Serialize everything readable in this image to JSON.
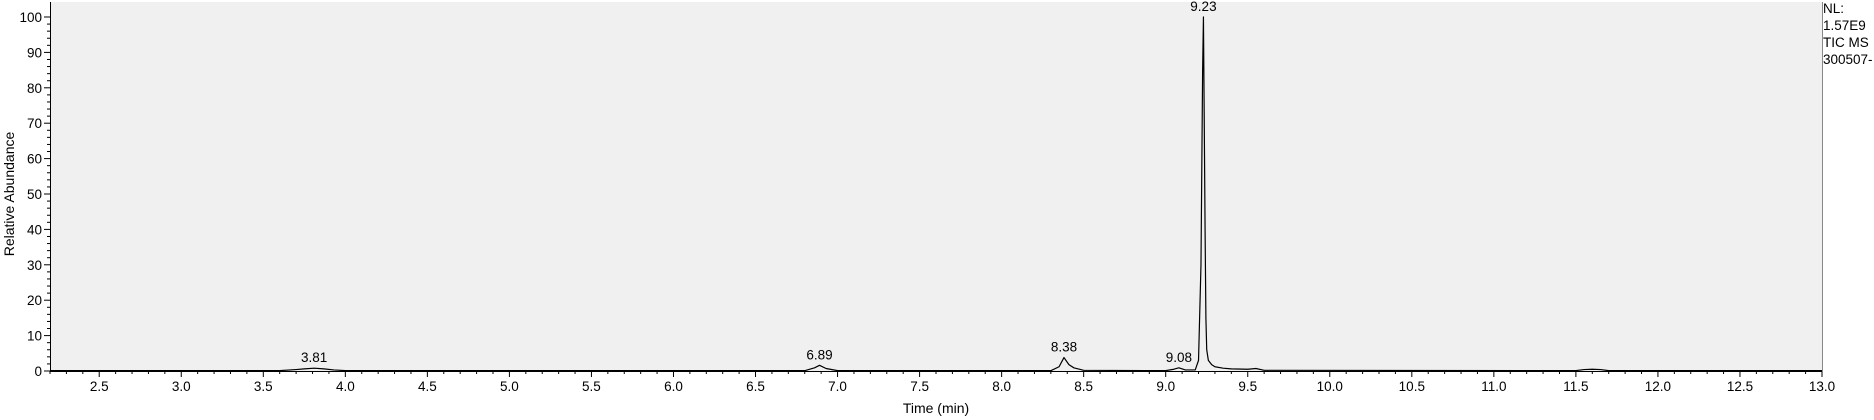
{
  "info": {
    "nl_label": "NL:",
    "nl_value": "1.57E9",
    "trace": "TIC  MS",
    "file": "300507-"
  },
  "chart_data": {
    "type": "line",
    "xlabel": "Time (min)",
    "ylabel": "Relative Abundance",
    "xlim": [
      2.2,
      13.0
    ],
    "ylim": [
      0,
      100
    ],
    "x_ticks": [
      2.5,
      3.0,
      3.5,
      4.0,
      4.5,
      5.0,
      5.5,
      6.0,
      6.5,
      7.0,
      7.5,
      8.0,
      8.5,
      9.0,
      9.5,
      10.0,
      10.5,
      11.0,
      11.5,
      12.0,
      12.5,
      13.0
    ],
    "x_tick_labels": [
      "2.5",
      "3.0",
      "3.5",
      "4.0",
      "4.5",
      "5.0",
      "5.5",
      "6.0",
      "6.5",
      "7.0",
      "7.5",
      "8.0",
      "8.5",
      "9.0",
      "9.5",
      "10.0",
      "10.5",
      "11.0",
      "11.5",
      "12.0",
      "12.5",
      "13.0"
    ],
    "y_ticks": [
      0,
      10,
      20,
      30,
      40,
      50,
      60,
      70,
      80,
      90,
      100
    ],
    "y_tick_labels": [
      "0",
      "10",
      "20",
      "30",
      "40",
      "50",
      "60",
      "70",
      "80",
      "90",
      "100"
    ],
    "grid": false,
    "plot_background": "#f0f0f0",
    "line_color": "#000000",
    "peaks": [
      {
        "label": "3.81",
        "x": 3.81,
        "y": 0.8
      },
      {
        "label": "6.89",
        "x": 6.89,
        "y": 1.6
      },
      {
        "label": "8.38",
        "x": 8.38,
        "y": 3.8
      },
      {
        "label": "9.08",
        "x": 9.08,
        "y": 0.9
      },
      {
        "label": "9.23",
        "x": 9.23,
        "y": 100
      }
    ],
    "series": [
      {
        "x": [
          2.2,
          3.6,
          3.7,
          3.75,
          3.81,
          3.87,
          3.93,
          4.0,
          6.8,
          6.86,
          6.89,
          6.93,
          7.0,
          8.3,
          8.35,
          8.38,
          8.41,
          8.44,
          8.5,
          9.0,
          9.05,
          9.08,
          9.12,
          9.18,
          9.2,
          9.215,
          9.225,
          9.23,
          9.235,
          9.24,
          9.245,
          9.25,
          9.26,
          9.28,
          9.3,
          9.35,
          9.4,
          9.5,
          9.55,
          9.6,
          11.5,
          11.55,
          11.6,
          11.65,
          11.7,
          13.0
        ],
        "y": [
          0.1,
          0.1,
          0.4,
          0.6,
          0.8,
          0.6,
          0.3,
          0.1,
          0.1,
          0.9,
          1.6,
          0.7,
          0.1,
          0.1,
          1.2,
          3.8,
          1.8,
          0.9,
          0.2,
          0.1,
          0.5,
          0.9,
          0.3,
          0.3,
          3,
          30,
          85,
          100,
          70,
          40,
          15,
          6,
          3,
          1.8,
          1.2,
          0.8,
          0.6,
          0.5,
          0.7,
          0.2,
          0.1,
          0.4,
          0.5,
          0.4,
          0.1,
          0.1
        ]
      }
    ]
  }
}
